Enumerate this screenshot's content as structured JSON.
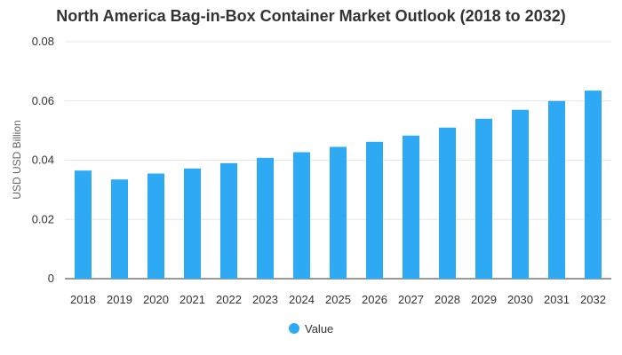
{
  "chart_data": {
    "type": "bar",
    "title": "North America Bag-in-Box Container Market Outlook (2018 to 2032)",
    "xlabel": "",
    "ylabel": "USD USD Billion",
    "ylim": [
      0,
      0.08
    ],
    "yticks": [
      0,
      0.02,
      0.04,
      0.06,
      0.08
    ],
    "ytick_labels": [
      "0",
      "0.02",
      "0.04",
      "0.06",
      "0.08"
    ],
    "categories": [
      "2018",
      "2019",
      "2020",
      "2021",
      "2022",
      "2023",
      "2024",
      "2025",
      "2026",
      "2027",
      "2028",
      "2029",
      "2030",
      "2031",
      "2032"
    ],
    "series": [
      {
        "name": "Value",
        "color": "#2eaaf5",
        "values": [
          0.0365,
          0.0335,
          0.0355,
          0.0372,
          0.039,
          0.0408,
          0.0427,
          0.0445,
          0.0462,
          0.0483,
          0.051,
          0.054,
          0.057,
          0.06,
          0.0635
        ]
      }
    ],
    "grid": true,
    "legend_position": "bottom-center"
  }
}
